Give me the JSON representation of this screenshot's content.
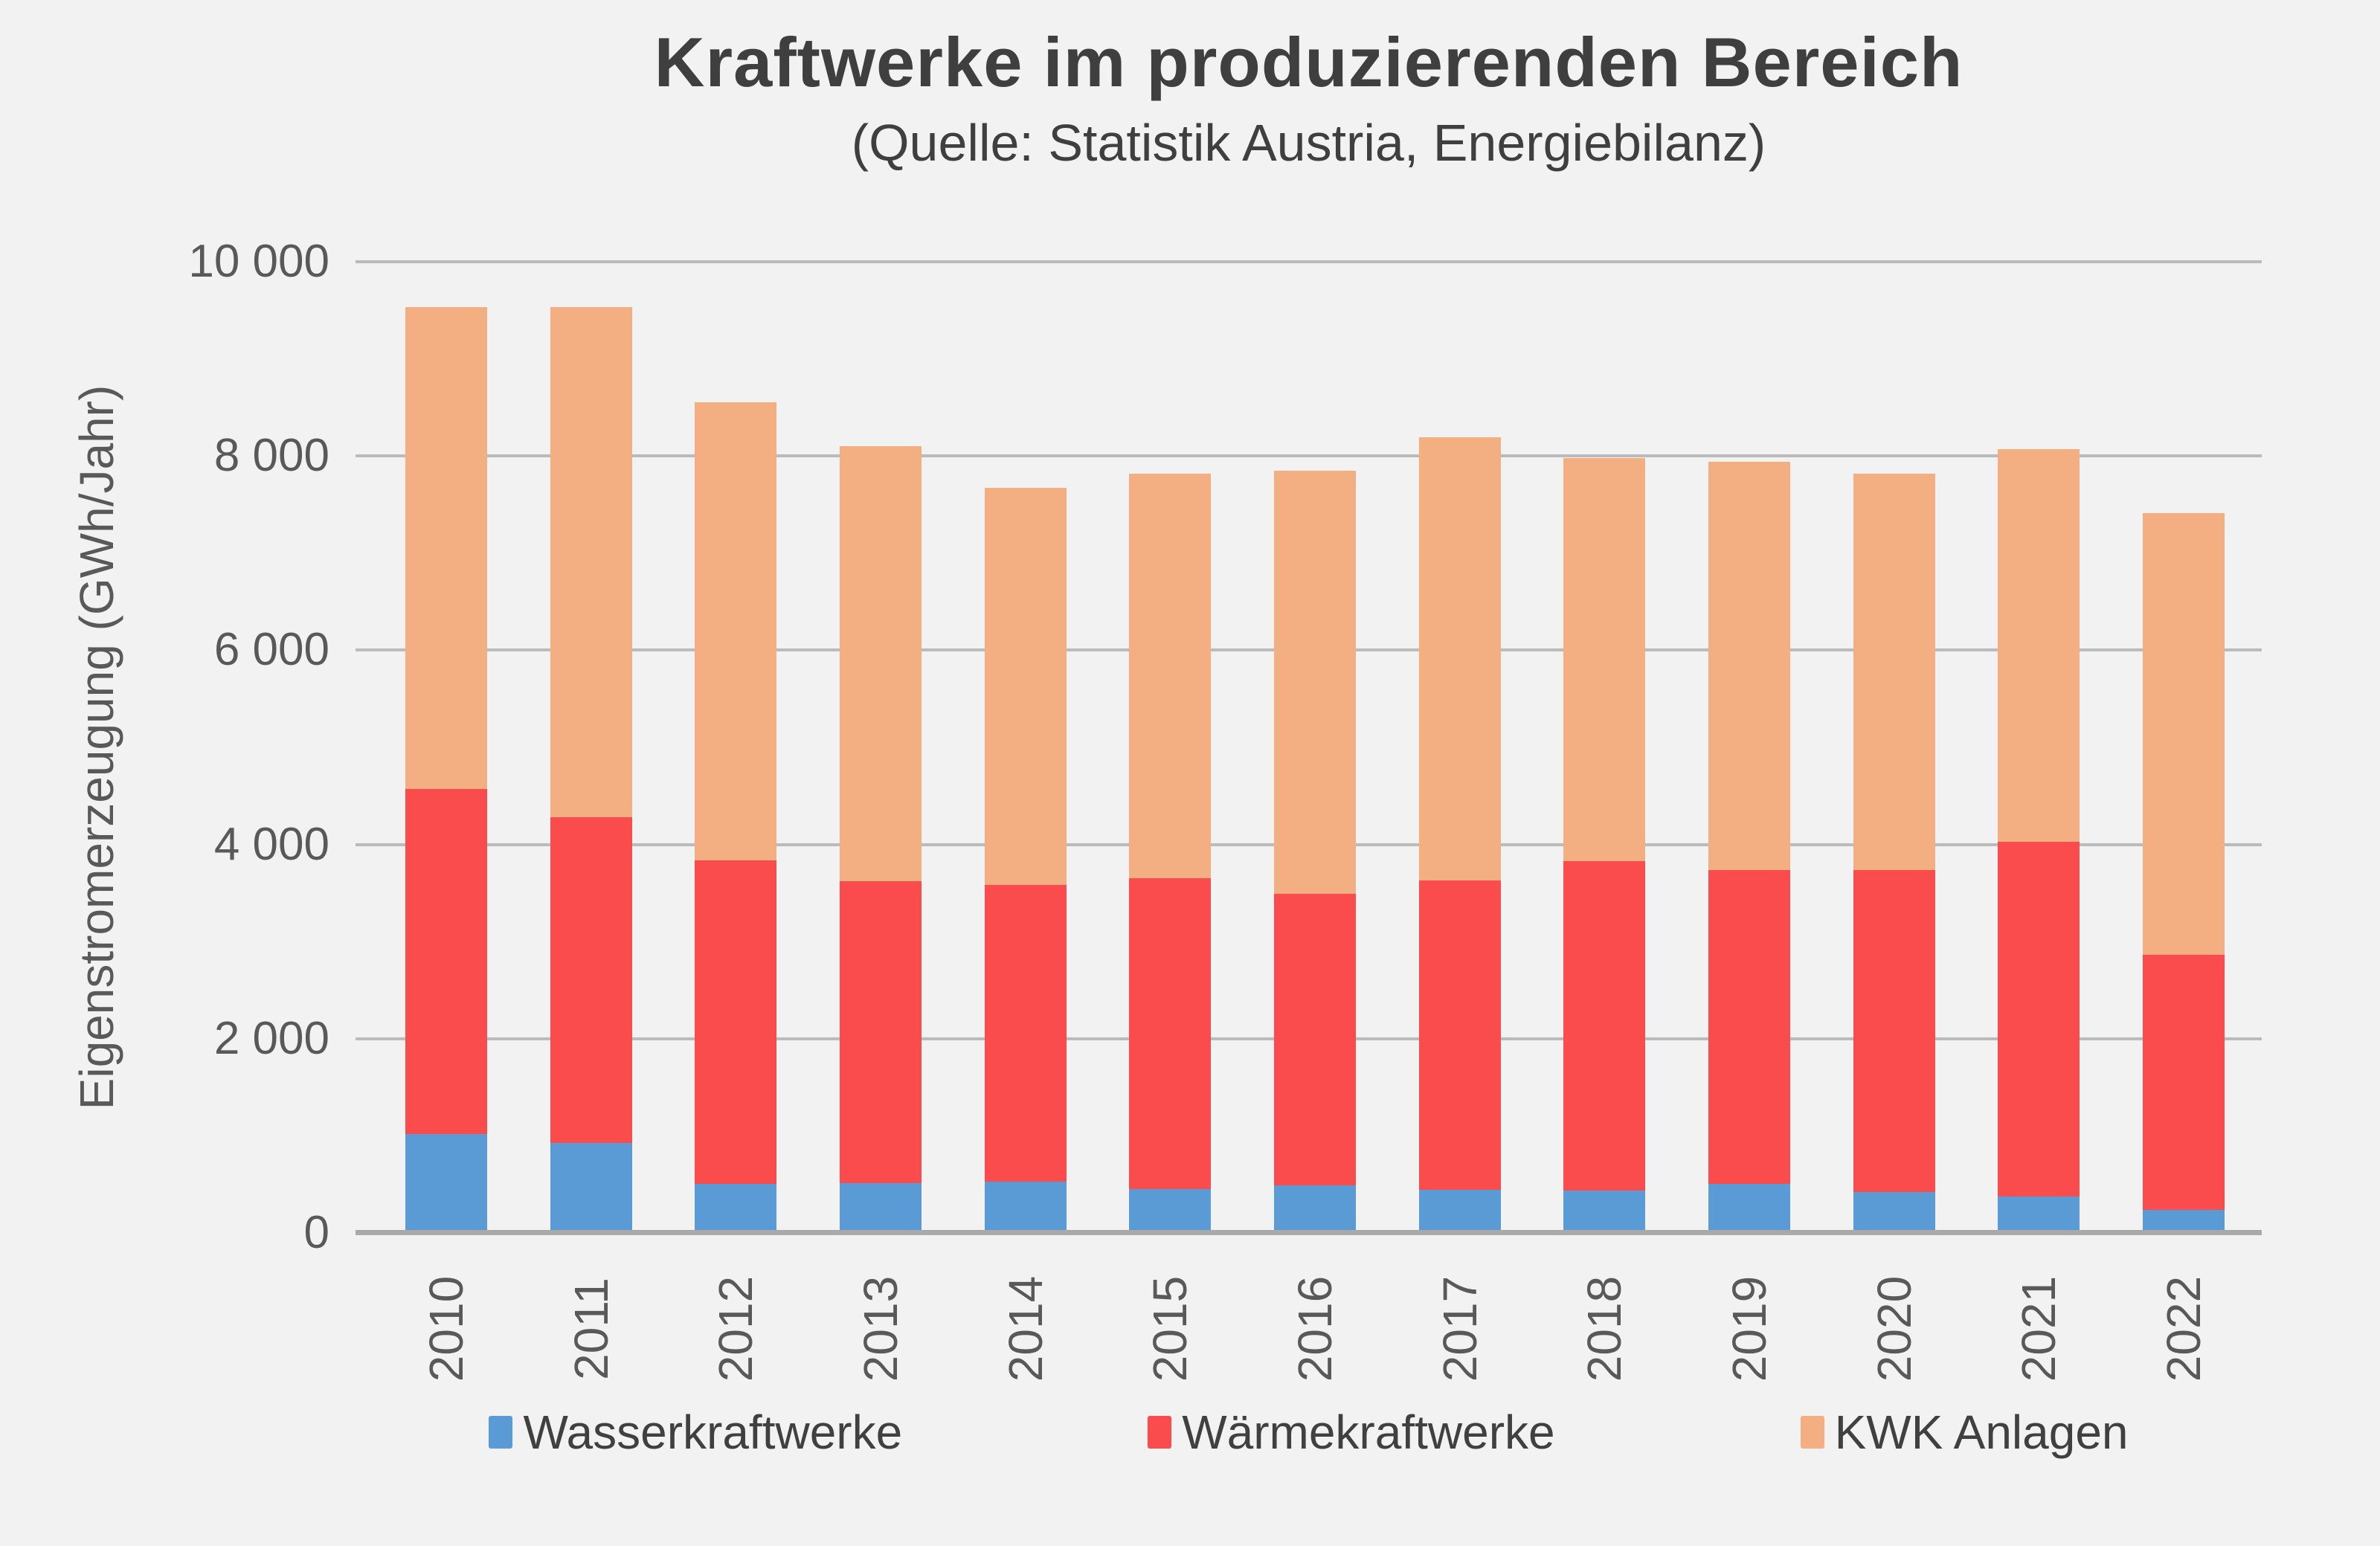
{
  "style": {
    "background": "#F2F2F2",
    "gridline_color": "#BBBBBB",
    "axis_line_color": "#A9A9A9",
    "tick_text_color": "#595959",
    "title_color": "#3F3F3F",
    "legend_text_color": "#404040"
  },
  "header": {
    "title": "Kraftwerke im produzierenden Bereich",
    "subtitle": "(Quelle: Statistik Austria, Energiebilanz)"
  },
  "chart_data": {
    "type": "bar",
    "stacked": true,
    "title": "Kraftwerke im produzierenden Bereich",
    "subtitle": "(Quelle: Statistik Austria, Energiebilanz)",
    "ylabel": "Eigenstromerzeugung (GWh/Jahr)",
    "xlabel": "",
    "ylim": [
      0,
      10000
    ],
    "grid": true,
    "legend_position": "bottom",
    "yticks": [
      {
        "value": 0,
        "label": "0"
      },
      {
        "value": 2000,
        "label": "2 000"
      },
      {
        "value": 4000,
        "label": "4 000"
      },
      {
        "value": 6000,
        "label": "6 000"
      },
      {
        "value": 8000,
        "label": "8 000"
      },
      {
        "value": 10000,
        "label": "10 000"
      }
    ],
    "categories": [
      "2010",
      "2011",
      "2012",
      "2013",
      "2014",
      "2015",
      "2016",
      "2017",
      "2018",
      "2019",
      "2020",
      "2021",
      "2022"
    ],
    "series": [
      {
        "name": "Wasserkraftwerke",
        "color": "#5B9BD5",
        "values": [
          1020,
          930,
          505,
          515,
          530,
          450,
          490,
          445,
          440,
          505,
          425,
          375,
          240
        ]
      },
      {
        "name": "Wärmekraftwerke",
        "color": "#FB4C4D",
        "values": [
          3550,
          3350,
          3335,
          3105,
          3050,
          3200,
          3000,
          3185,
          3390,
          3235,
          3315,
          3655,
          2620
        ]
      },
      {
        "name": "KWK Anlagen",
        "color": "#F3AF82",
        "values": [
          4960,
          5250,
          4710,
          4480,
          4090,
          4170,
          4360,
          4560,
          4150,
          4200,
          4080,
          4040,
          4550
        ]
      }
    ]
  }
}
